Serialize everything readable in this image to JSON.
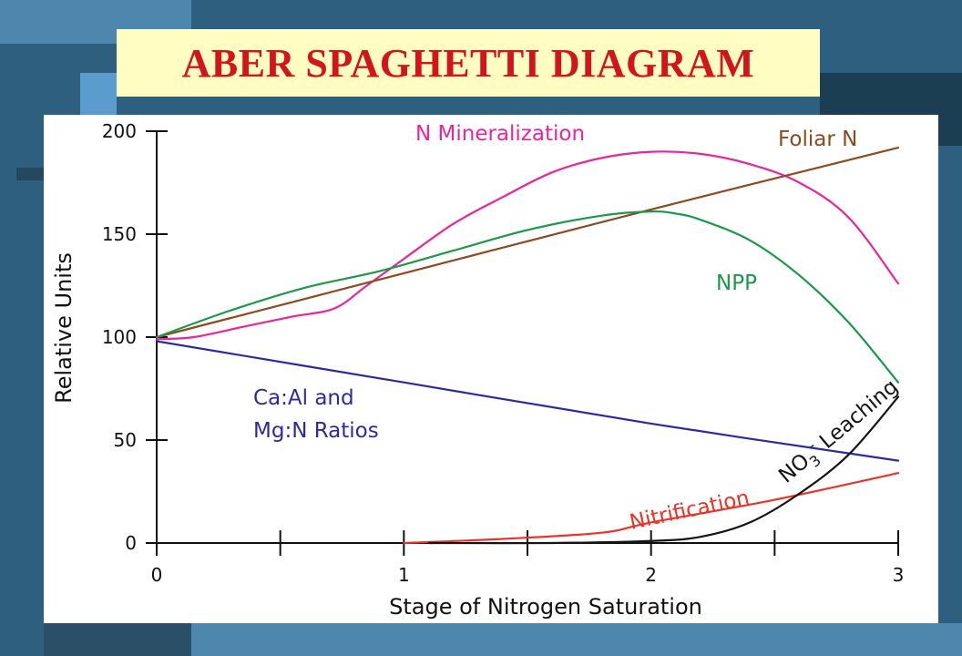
{
  "slide": {
    "title": "ABER SPAGHETTI DIAGRAM"
  },
  "colors": {
    "background": "#2f5f7e",
    "title_bg": "#fffdc2",
    "title_text": "#d4141c"
  },
  "chart_data": {
    "type": "line",
    "title": "",
    "xlabel": "Stage of Nitrogen Saturation",
    "ylabel": "Relative Units",
    "xlim": [
      0,
      3
    ],
    "ylim": [
      0,
      200
    ],
    "x_ticks": [
      "0",
      "1",
      "2",
      "3"
    ],
    "y_ticks": [
      "0",
      "50",
      "100",
      "150",
      "200"
    ],
    "grid": false,
    "legend": "inline labels",
    "series": [
      {
        "name": "N Mineralization",
        "color": "#e8259a",
        "points": [
          [
            0,
            99
          ],
          [
            0.15,
            100
          ],
          [
            0.35,
            105
          ],
          [
            0.55,
            110
          ],
          [
            0.72,
            114
          ],
          [
            0.85,
            125
          ],
          [
            1.0,
            138
          ],
          [
            1.2,
            155
          ],
          [
            1.4,
            168
          ],
          [
            1.6,
            180
          ],
          [
            1.8,
            187
          ],
          [
            2.0,
            190
          ],
          [
            2.2,
            189
          ],
          [
            2.4,
            184
          ],
          [
            2.6,
            175
          ],
          [
            2.8,
            158
          ],
          [
            3.0,
            126
          ]
        ]
      },
      {
        "name": "Foliar N",
        "color": "#8b4a20",
        "points": [
          [
            0,
            100
          ],
          [
            1.0,
            131
          ],
          [
            2.0,
            162
          ],
          [
            3.0,
            192
          ]
        ]
      },
      {
        "name": "NPP",
        "color": "#1a9a48",
        "points": [
          [
            0,
            100
          ],
          [
            0.3,
            113
          ],
          [
            0.6,
            124
          ],
          [
            0.9,
            132
          ],
          [
            1.2,
            142
          ],
          [
            1.5,
            152
          ],
          [
            1.8,
            159
          ],
          [
            2.0,
            161
          ],
          [
            2.1,
            160
          ],
          [
            2.2,
            157
          ],
          [
            2.4,
            147
          ],
          [
            2.6,
            130
          ],
          [
            2.8,
            107
          ],
          [
            3.0,
            78
          ]
        ]
      },
      {
        "name": "Ca:Al and Mg:N Ratios",
        "label_lines": [
          "Ca:Al and",
          "Mg:N Ratios"
        ],
        "color": "#2b2ba0",
        "points": [
          [
            0,
            98
          ],
          [
            1.0,
            78
          ],
          [
            2.0,
            58
          ],
          [
            3.0,
            40
          ]
        ]
      },
      {
        "name": "Nitrification",
        "color": "#e8342a",
        "points": [
          [
            1.0,
            0
          ],
          [
            1.4,
            2
          ],
          [
            1.8,
            5
          ],
          [
            2.0,
            10
          ],
          [
            2.5,
            21
          ],
          [
            3.0,
            34
          ]
        ]
      },
      {
        "name": "NO3- Leaching",
        "label_main": "NO",
        "label_sub": "3",
        "label_sup": "-",
        "label_rest": " Leaching",
        "color": "#141414",
        "points": [
          [
            1.1,
            0
          ],
          [
            1.6,
            0
          ],
          [
            2.0,
            1
          ],
          [
            2.2,
            3
          ],
          [
            2.4,
            10
          ],
          [
            2.6,
            24
          ],
          [
            2.8,
            43
          ],
          [
            3.0,
            71
          ]
        ]
      }
    ]
  }
}
